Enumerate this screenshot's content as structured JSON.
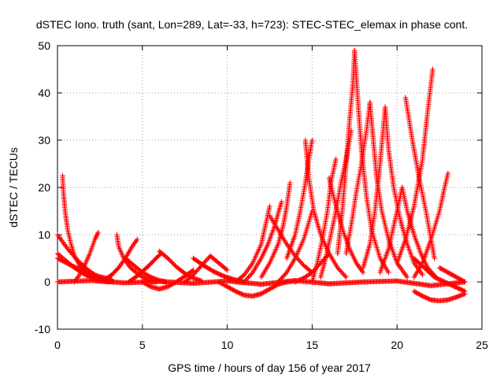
{
  "chart_data": {
    "type": "scatter",
    "title": "dSTEC Iono. truth (sant, Lon=289, Lat=-33, h=723): STEC-STEC_elemax in phase cont.",
    "xlabel": "GPS time / hours of day 156 of year 2017",
    "ylabel": "dSTEC  / TECUs",
    "xlim": [
      0,
      25
    ],
    "ylim": [
      -10,
      50
    ],
    "xticks": [
      0,
      5,
      10,
      15,
      20,
      25
    ],
    "yticks": [
      -10,
      0,
      10,
      20,
      30,
      40,
      50
    ],
    "grid": true,
    "marker": "+",
    "color": "#ff0000",
    "series": [
      {
        "x": [
          0.0,
          0.5,
          1.0,
          1.5,
          2.0,
          2.5,
          3.0
        ],
        "y": [
          6,
          4.5,
          3,
          1.8,
          0.8,
          0.2,
          0
        ]
      },
      {
        "x": [
          0.3,
          0.35,
          0.45,
          0.6,
          0.8,
          1.0,
          1.3,
          1.7,
          2.2,
          2.8,
          3.3
        ],
        "y": [
          22.5,
          19,
          15,
          11,
          8,
          5.5,
          3.5,
          2,
          1,
          0.3,
          0
        ]
      },
      {
        "x": [
          0.0,
          0.6,
          1.2,
          1.8,
          2.4,
          3.0
        ],
        "y": [
          10,
          7,
          4.5,
          2.5,
          1,
          0.2
        ]
      },
      {
        "x": [
          0.0,
          0.8,
          1.6,
          2.4,
          3.2
        ],
        "y": [
          5,
          3.5,
          2.2,
          1.2,
          0.5
        ]
      },
      {
        "x": [
          1.0,
          1.3,
          1.6,
          1.9,
          2.2,
          2.4
        ],
        "y": [
          0,
          1.5,
          3.5,
          6,
          9,
          10.5
        ]
      },
      {
        "x": [
          3.5,
          3.6,
          3.9,
          4.3,
          4.8,
          5.3,
          5.8
        ],
        "y": [
          10,
          7.5,
          5,
          3,
          1.5,
          0.5,
          0
        ]
      },
      {
        "x": [
          2.8,
          3.2,
          3.6,
          4.0,
          4.4,
          4.7
        ],
        "y": [
          0.5,
          1.5,
          3,
          5,
          7.5,
          9
        ]
      },
      {
        "x": [
          4.0,
          4.5,
          5.0,
          5.5,
          6.0,
          6.4
        ],
        "y": [
          5,
          3.5,
          2,
          1,
          0.3,
          0
        ]
      },
      {
        "x": [
          4.2,
          4.6,
          5.0,
          5.4,
          5.8,
          6.1
        ],
        "y": [
          0,
          1,
          2.2,
          3.5,
          5,
          6
        ]
      },
      {
        "x": [
          5.0,
          5.5,
          6.0,
          6.5,
          7.0,
          7.5,
          8.0
        ],
        "y": [
          0,
          -1,
          -1.5,
          -1,
          0,
          1.2,
          2.5
        ]
      },
      {
        "x": [
          6.0,
          6.5,
          7.0,
          7.5,
          8.0,
          8.5
        ],
        "y": [
          6.5,
          5,
          3.2,
          1.8,
          0.8,
          0.2
        ]
      },
      {
        "x": [
          7.5,
          8.0,
          8.5,
          9.0,
          9.5,
          10.0
        ],
        "y": [
          0,
          1.5,
          3.5,
          5.5,
          4,
          2.5
        ]
      },
      {
        "x": [
          8.0,
          8.6,
          9.2,
          9.8,
          10.4,
          11.0
        ],
        "y": [
          5,
          3.5,
          2.2,
          1.2,
          0.5,
          0
        ]
      },
      {
        "x": [
          9.5,
          10.0,
          10.5,
          11.0,
          11.5,
          12.0,
          12.5,
          13.0,
          13.5,
          14.0
        ],
        "y": [
          0,
          -1,
          -2,
          -2.8,
          -3,
          -2.5,
          -1.5,
          -0.5,
          0,
          0.2
        ]
      },
      {
        "x": [
          10.5,
          11.0,
          11.5,
          12.0,
          12.5
        ],
        "y": [
          0,
          1.5,
          4,
          8,
          16
        ]
      },
      {
        "x": [
          11.0,
          11.5,
          12.0,
          12.4,
          12.8,
          13.2
        ],
        "y": [
          0,
          2,
          5,
          8,
          12,
          17
        ]
      },
      {
        "x": [
          12.0,
          12.5,
          13.0,
          13.3,
          13.5,
          13.7
        ],
        "y": [
          1,
          4,
          8,
          12,
          16,
          21
        ]
      },
      {
        "x": [
          12.5,
          13.0,
          13.5,
          14.0,
          14.5,
          15.0
        ],
        "y": [
          14,
          11,
          8,
          5.5,
          3.5,
          2
        ]
      },
      {
        "x": [
          13.0,
          13.5,
          14.0,
          14.5,
          15.0
        ],
        "y": [
          0,
          2,
          5,
          9,
          15
        ]
      },
      {
        "x": [
          13.5,
          14.0,
          14.3,
          14.6,
          14.8,
          15.0
        ],
        "y": [
          5,
          10,
          15,
          21,
          26,
          30
        ]
      },
      {
        "x": [
          14.6,
          14.8,
          15.1,
          15.5,
          16.0,
          16.5,
          17.0
        ],
        "y": [
          30,
          22,
          15,
          10,
          6,
          3,
          1
        ]
      },
      {
        "x": [
          15.0,
          15.3,
          15.6,
          15.9,
          16.1,
          16.4
        ],
        "y": [
          0,
          4,
          9,
          15,
          21,
          26
        ]
      },
      {
        "x": [
          14.0,
          14.5,
          15.0,
          15.5,
          16.0
        ],
        "y": [
          0,
          0.8,
          2,
          4,
          6
        ]
      },
      {
        "x": [
          15.5,
          15.8,
          16.1,
          16.4,
          16.7,
          17.0,
          17.3
        ],
        "y": [
          1,
          5,
          10,
          15,
          21,
          26,
          32
        ]
      },
      {
        "x": [
          16.0,
          16.4,
          16.8,
          17.2,
          17.6,
          18.0
        ],
        "y": [
          22,
          16,
          11,
          7,
          4,
          2
        ]
      },
      {
        "x": [
          16.5,
          16.8,
          17.0,
          17.2,
          17.4,
          17.5
        ],
        "y": [
          6,
          16,
          25,
          34,
          42,
          49
        ]
      },
      {
        "x": [
          17.5,
          17.7,
          17.9,
          18.2,
          18.5,
          19.0,
          19.5
        ],
        "y": [
          49,
          38,
          28,
          18,
          11,
          5,
          2
        ]
      },
      {
        "x": [
          17.0,
          17.3,
          17.6,
          17.9,
          18.2,
          18.4
        ],
        "y": [
          6,
          12,
          19,
          25,
          32,
          38
        ]
      },
      {
        "x": [
          18.4,
          18.6,
          18.8,
          19.1,
          19.5,
          20.0,
          20.6
        ],
        "y": [
          38,
          30,
          22,
          15,
          9,
          4,
          1
        ]
      },
      {
        "x": [
          18.0,
          18.4,
          18.7,
          19.0,
          19.3
        ],
        "y": [
          3,
          8,
          15,
          25,
          37
        ]
      },
      {
        "x": [
          19.3,
          19.5,
          19.8,
          20.2,
          20.6,
          21.0,
          21.5
        ],
        "y": [
          37,
          28,
          20,
          13,
          8,
          4,
          1.5
        ]
      },
      {
        "x": [
          19.0,
          19.5,
          20.0,
          20.3
        ],
        "y": [
          2,
          7,
          15,
          20
        ]
      },
      {
        "x": [
          20.3,
          20.6,
          21.0,
          21.4,
          21.8,
          22.3
        ],
        "y": [
          20,
          15,
          10,
          6,
          3,
          1
        ]
      },
      {
        "x": [
          20.5,
          20.9,
          21.3,
          21.7,
          22.0,
          22.2
        ],
        "y": [
          39,
          30,
          22,
          15,
          9,
          5
        ]
      },
      {
        "x": [
          20.0,
          20.5,
          21.0,
          21.5,
          21.8,
          22.1
        ],
        "y": [
          4,
          9,
          16,
          26,
          36,
          45
        ]
      },
      {
        "x": [
          21.0,
          21.5,
          22.0,
          22.5,
          22.8,
          23.0
        ],
        "y": [
          1,
          4,
          9,
          15,
          20,
          23
        ]
      },
      {
        "x": [
          21.0,
          21.6,
          22.2,
          22.8,
          23.4,
          24.0
        ],
        "y": [
          5,
          3,
          1,
          0,
          -1,
          -2
        ]
      },
      {
        "x": [
          21.0,
          21.5,
          22.0,
          22.5,
          23.0,
          23.5,
          24.0
        ],
        "y": [
          -2,
          -3,
          -3.8,
          -4,
          -3.8,
          -3.2,
          -2.5
        ]
      },
      {
        "x": [
          22.5,
          23.0,
          23.5,
          24.0
        ],
        "y": [
          3,
          2,
          1,
          0
        ]
      },
      {
        "x": [
          0.0,
          2.0,
          4.0,
          6.0,
          8.0,
          10.0,
          12.0,
          14.0,
          16.0,
          18.0,
          20.0,
          22.0,
          24.0
        ],
        "y": [
          0,
          0.3,
          -0.2,
          0.1,
          -0.3,
          0.2,
          -0.5,
          0.3,
          -0.4,
          0,
          0.2,
          -0.8,
          0
        ]
      }
    ]
  }
}
